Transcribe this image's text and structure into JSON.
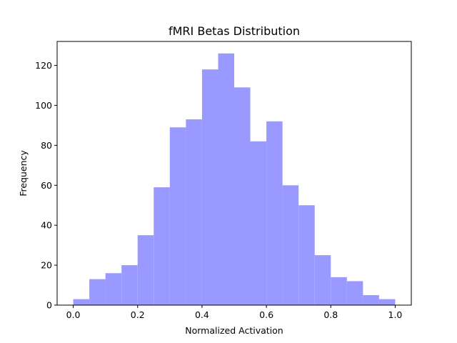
{
  "chart_data": {
    "type": "bar",
    "title": "fMRI Betas Distribution",
    "xlabel": "Normalized Activation",
    "ylabel": "Frequency",
    "xlim": [
      -0.05,
      1.05
    ],
    "ylim": [
      0,
      132
    ],
    "xticks": [
      "0.0",
      "0.2",
      "0.4",
      "0.6",
      "0.8",
      "1.0"
    ],
    "xtick_values": [
      0.0,
      0.2,
      0.4,
      0.6,
      0.8,
      1.0
    ],
    "yticks": [
      "0",
      "20",
      "40",
      "60",
      "80",
      "100",
      "120"
    ],
    "ytick_values": [
      0,
      20,
      40,
      60,
      80,
      100,
      120
    ],
    "bin_edges": [
      0.0,
      0.05,
      0.1,
      0.15,
      0.2,
      0.25,
      0.3,
      0.35,
      0.4,
      0.45,
      0.5,
      0.55,
      0.6,
      0.65,
      0.7,
      0.75,
      0.8,
      0.85,
      0.9,
      0.95,
      1.0
    ],
    "values": [
      3,
      13,
      16,
      20,
      35,
      59,
      89,
      93,
      118,
      126,
      109,
      82,
      92,
      60,
      50,
      25,
      14,
      12,
      5,
      3
    ],
    "bar_color": "#9999ff",
    "grid": false,
    "legend": "none"
  }
}
